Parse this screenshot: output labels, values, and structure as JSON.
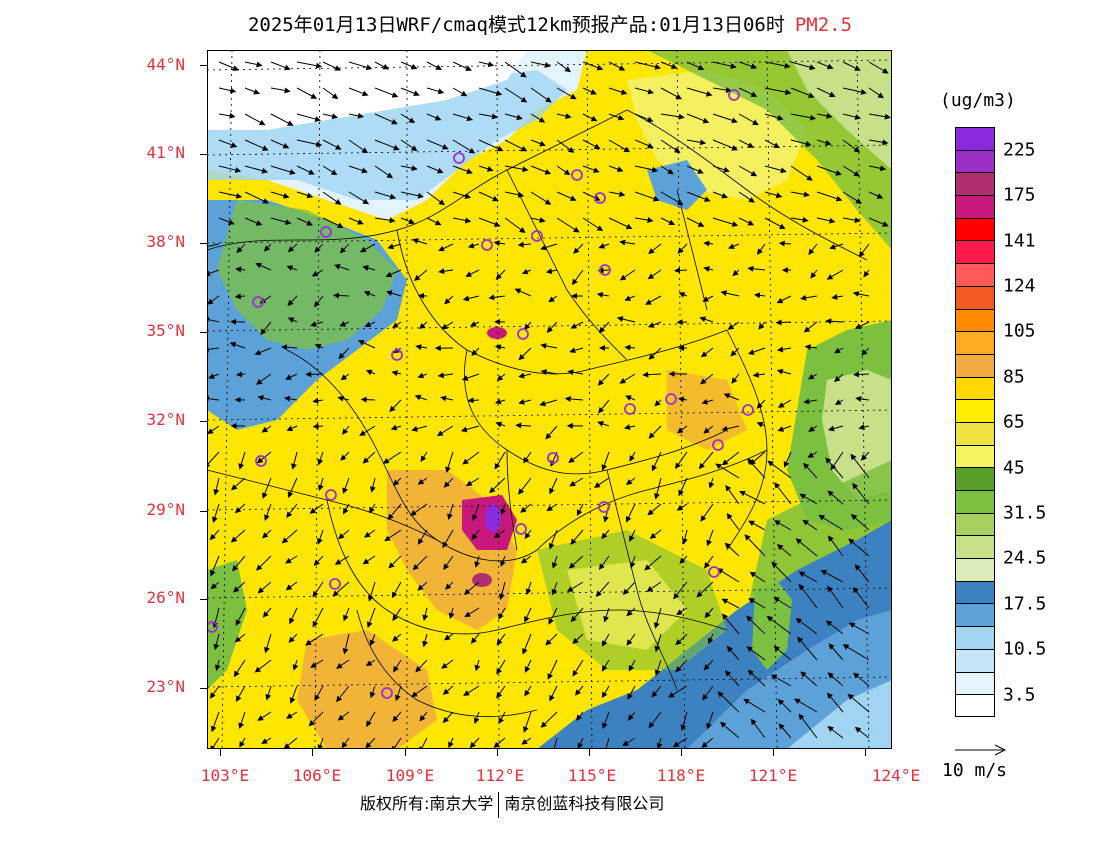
{
  "title": "2025年01月13日WRF/cmaq模式12km预报产品:01月13日06时",
  "species": "PM2.5",
  "lat_labels": [
    "44°N",
    "41°N",
    "38°N",
    "35°N",
    "32°N",
    "29°N",
    "26°N",
    "23°N"
  ],
  "lon_labels": [
    "103°E",
    "106°E",
    "109°E",
    "112°E",
    "115°E",
    "118°E",
    "121°E",
    "124°E"
  ],
  "legend": {
    "unit": "(ug/m3)",
    "labels": [
      "225",
      "175",
      "141",
      "124",
      "105",
      "85",
      "65",
      "45",
      "31.5",
      "24.5",
      "17.5",
      "10.5",
      "3.5"
    ],
    "colors": [
      "#8b2be0",
      "#9c2fc8",
      "#b0306e",
      "#c8187c",
      "#ff0000",
      "#ff1a4c",
      "#ff5a5a",
      "#f25a22",
      "#ff8a00",
      "#ffaa22",
      "#f0aa40",
      "#ffd800",
      "#ffee00",
      "#f0e240",
      "#f4f460",
      "#5a9e2a",
      "#7cc040",
      "#a8d060",
      "#c8e088",
      "#dcecbc",
      "#3c82c0",
      "#5ca2d8",
      "#a0d4f2",
      "#c4e6f8",
      "#e4f4fc",
      "#ffffff"
    ]
  },
  "wind_reference": "10 m/s",
  "footer": {
    "copyright": "版权所有:南京大学",
    "company": "南京创蓝科技有限公司"
  },
  "map_colors": {
    "ocean_deep": "#3c82c0",
    "ocean_mid": "#5ca2d8",
    "ocean_light": "#a0d4f2",
    "yellow": "#ffe600",
    "yellow_light": "#f4f060",
    "orange": "#f0aa40",
    "green": "#7cc040",
    "green_light": "#c8e088",
    "magenta": "#b0306e",
    "purple": "#8b2be0",
    "station_marker": "#9b30d8"
  },
  "stations": 24
}
